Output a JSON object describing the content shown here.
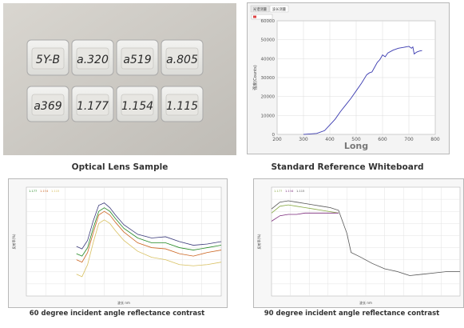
{
  "photo": {
    "labels_top": [
      "5Y-B",
      "a.320",
      "a519",
      "a.805"
    ],
    "labels_bottom": [
      "a369",
      "1.177",
      "1.154",
      "1.115"
    ]
  },
  "captions": {
    "lens": "Optical Lens Sample",
    "whiteboard": "Standard Reference Whiteboard",
    "deg60": "60 degree incident angle reflectance contrast",
    "deg90": "90 degree incident angle reflectance contrast"
  },
  "chart_data": [
    {
      "type": "line",
      "title": "",
      "tabs": [
        "光谱测量",
        "波长测量"
      ],
      "xlabel": "Long",
      "ylabel": "强度(Counts)",
      "xlim": [
        200,
        800
      ],
      "ylim": [
        0,
        60000
      ],
      "xticks": [
        200,
        300,
        400,
        500,
        600,
        700,
        800
      ],
      "yticks": [
        0,
        10000,
        20000,
        30000,
        40000,
        50000,
        60000
      ],
      "grid": true,
      "series": [
        {
          "color": "#3a3ab0",
          "x": [
            300,
            350,
            380,
            400,
            420,
            440,
            460,
            480,
            500,
            520,
            540,
            550,
            560,
            570,
            580,
            590,
            600,
            610,
            620,
            640,
            660,
            680,
            700,
            710,
            715,
            720,
            730,
            740,
            750
          ],
          "y": [
            0,
            500,
            2000,
            5000,
            8000,
            12000,
            15500,
            19000,
            23000,
            27000,
            31500,
            32500,
            33000,
            35500,
            38000,
            39500,
            42000,
            41000,
            43000,
            44500,
            45500,
            46000,
            46500,
            45500,
            46200,
            42500,
            43500,
            44000,
            44300
          ]
        }
      ]
    },
    {
      "type": "line",
      "title": "",
      "legend": [
        "1.177",
        "1.154",
        "1.115"
      ],
      "xlabel": "波长 nm",
      "ylabel": "反射率(%)",
      "xlim": [
        300,
        1000
      ],
      "ylim": [
        0.6,
        1.5
      ],
      "grid": true,
      "series": [
        {
          "color": "#3a3a7a",
          "x": [
            480,
            500,
            520,
            540,
            560,
            580,
            600,
            620,
            650,
            700,
            750,
            800,
            850,
            900,
            950,
            1000
          ],
          "y": [
            1.01,
            0.99,
            1.06,
            1.22,
            1.35,
            1.37,
            1.33,
            1.27,
            1.19,
            1.11,
            1.08,
            1.09,
            1.05,
            1.02,
            1.03,
            1.05
          ]
        },
        {
          "color": "#228822",
          "x": [
            480,
            500,
            520,
            540,
            560,
            580,
            600,
            620,
            650,
            700,
            750,
            800,
            850,
            900,
            950,
            1000
          ],
          "y": [
            0.95,
            0.93,
            1.0,
            1.16,
            1.3,
            1.33,
            1.3,
            1.24,
            1.16,
            1.08,
            1.04,
            1.04,
            1.0,
            0.98,
            1.0,
            1.02
          ]
        },
        {
          "color": "#cc6622",
          "x": [
            480,
            500,
            520,
            540,
            560,
            580,
            600,
            620,
            650,
            700,
            750,
            800,
            850,
            900,
            950,
            1000
          ],
          "y": [
            0.9,
            0.88,
            0.96,
            1.12,
            1.27,
            1.3,
            1.27,
            1.21,
            1.13,
            1.04,
            1.0,
            0.99,
            0.95,
            0.93,
            0.96,
            0.98
          ]
        },
        {
          "color": "#d8c060",
          "x": [
            480,
            500,
            520,
            540,
            560,
            580,
            600,
            620,
            650,
            700,
            750,
            800,
            850,
            900,
            950,
            1000
          ],
          "y": [
            0.78,
            0.76,
            0.86,
            1.04,
            1.2,
            1.23,
            1.2,
            1.14,
            1.06,
            0.97,
            0.92,
            0.9,
            0.86,
            0.85,
            0.86,
            0.88
          ]
        }
      ]
    },
    {
      "type": "line",
      "title": "",
      "legend": [
        "1.177",
        "1.154",
        "1.115"
      ],
      "xlabel": "波长 nm",
      "ylabel": "反射率(%)",
      "xlim": [
        200,
        1100
      ],
      "ylim": [
        0,
        4
      ],
      "grid": true,
      "series": [
        {
          "color": "#555555",
          "x": [
            200,
            240,
            280,
            320,
            360,
            400,
            440,
            480,
            520,
            560,
            580,
            620,
            680,
            740,
            800,
            860,
            920,
            980,
            1040,
            1100
          ],
          "y": [
            3.2,
            3.45,
            3.5,
            3.45,
            3.4,
            3.35,
            3.3,
            3.25,
            3.15,
            2.3,
            1.6,
            1.45,
            1.2,
            1.0,
            0.9,
            0.75,
            0.8,
            0.85,
            0.9,
            0.9
          ]
        },
        {
          "color": "#88aa44",
          "x": [
            200,
            240,
            280,
            320,
            360,
            400,
            440,
            480,
            520
          ],
          "y": [
            3.05,
            3.3,
            3.35,
            3.3,
            3.25,
            3.2,
            3.15,
            3.1,
            3.05
          ]
        },
        {
          "color": "#7b2a7b",
          "x": [
            200,
            240,
            280,
            320,
            360,
            400,
            440,
            480,
            520
          ],
          "y": [
            2.75,
            2.95,
            3.0,
            3.0,
            3.05,
            3.05,
            3.05,
            3.05,
            3.05
          ]
        }
      ]
    }
  ]
}
